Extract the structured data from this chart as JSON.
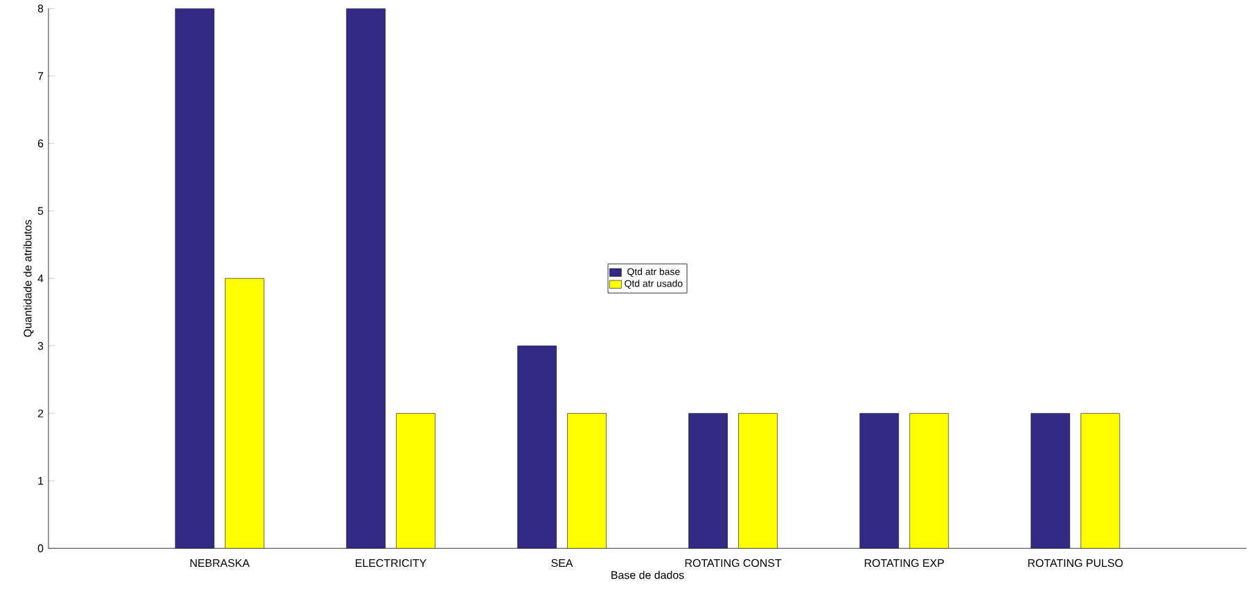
{
  "chart_data": {
    "type": "bar",
    "xlabel": "Base de dados",
    "ylabel": "Quantidade de atributos",
    "categories": [
      "NEBRASKA",
      "ELECTRICITY",
      "SEA",
      "ROTATING CONST",
      "ROTATING EXP",
      "ROTATING PULSO"
    ],
    "series": [
      {
        "name": "Qtd atr base",
        "color": "#332a86",
        "values": [
          8,
          8,
          3,
          2,
          2,
          2
        ]
      },
      {
        "name": "Qtd atr usado",
        "color": "#ffff00",
        "values": [
          4,
          2,
          2,
          2,
          2,
          2
        ]
      }
    ],
    "ylim": [
      0,
      8
    ],
    "yticks": [
      0,
      1,
      2,
      3,
      4,
      5,
      6,
      7,
      8
    ],
    "grid": false,
    "legend": "center"
  }
}
